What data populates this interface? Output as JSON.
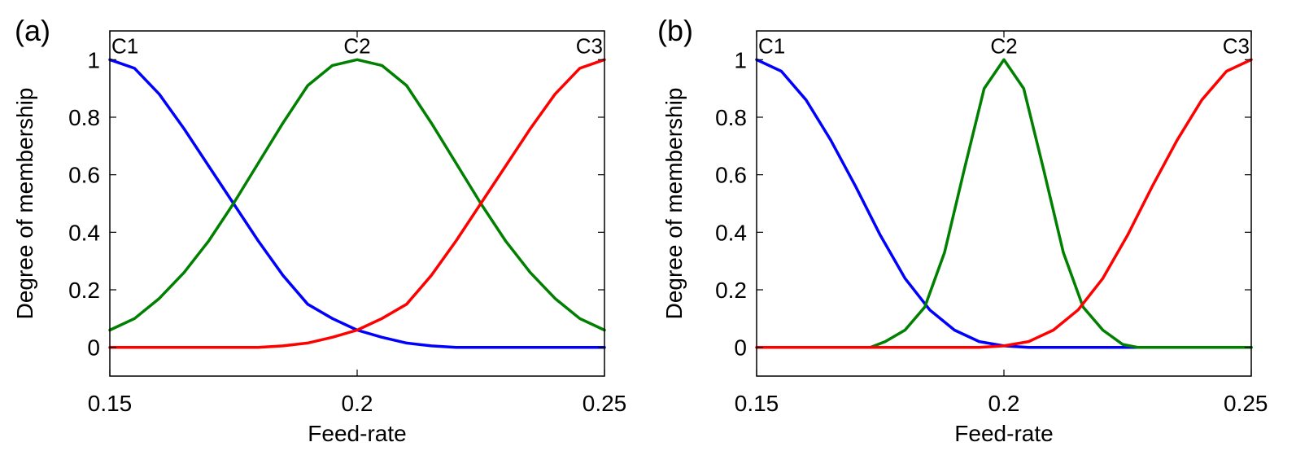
{
  "chart_data": [
    {
      "type": "line",
      "panel_label": "(a)",
      "xlabel": "Feed-rate",
      "ylabel": "Degree of membership",
      "xlim": [
        0.15,
        0.25
      ],
      "ylim": [
        -0.1,
        1.1
      ],
      "xticks": [
        0.15,
        0.2,
        0.25
      ],
      "xtick_labels": [
        "0.15",
        "0.2",
        "0.25"
      ],
      "yticks": [
        0,
        0.2,
        0.4,
        0.6,
        0.8,
        1
      ],
      "ytick_labels": [
        "0",
        "0.2",
        "0.4",
        "0.6",
        "0.8",
        "1"
      ],
      "grid": false,
      "series": [
        {
          "name": "C1",
          "color": "#0000ff",
          "x": [
            0.15,
            0.155,
            0.16,
            0.165,
            0.17,
            0.175,
            0.18,
            0.185,
            0.19,
            0.195,
            0.2,
            0.205,
            0.21,
            0.215,
            0.22,
            0.225,
            0.23,
            0.235,
            0.24,
            0.245,
            0.25
          ],
          "y": [
            1.0,
            0.97,
            0.88,
            0.76,
            0.63,
            0.5,
            0.37,
            0.25,
            0.15,
            0.1,
            0.06,
            0.035,
            0.015,
            0.005,
            0.0,
            0.0,
            0.0,
            0.0,
            0.0,
            0.0,
            0.0
          ]
        },
        {
          "name": "C2",
          "color": "#008000",
          "x": [
            0.15,
            0.155,
            0.16,
            0.165,
            0.17,
            0.175,
            0.18,
            0.185,
            0.19,
            0.195,
            0.2,
            0.205,
            0.21,
            0.215,
            0.22,
            0.225,
            0.23,
            0.235,
            0.24,
            0.245,
            0.25
          ],
          "y": [
            0.06,
            0.1,
            0.17,
            0.26,
            0.37,
            0.5,
            0.64,
            0.78,
            0.91,
            0.98,
            1.0,
            0.98,
            0.91,
            0.78,
            0.64,
            0.5,
            0.37,
            0.26,
            0.17,
            0.1,
            0.06
          ]
        },
        {
          "name": "C3",
          "color": "#ff0000",
          "x": [
            0.15,
            0.155,
            0.16,
            0.165,
            0.17,
            0.175,
            0.18,
            0.185,
            0.19,
            0.195,
            0.2,
            0.205,
            0.21,
            0.215,
            0.22,
            0.225,
            0.23,
            0.235,
            0.24,
            0.245,
            0.25
          ],
          "y": [
            0.0,
            0.0,
            0.0,
            0.0,
            0.0,
            0.0,
            0.0,
            0.005,
            0.015,
            0.035,
            0.06,
            0.1,
            0.15,
            0.25,
            0.37,
            0.5,
            0.63,
            0.76,
            0.88,
            0.97,
            1.0
          ]
        }
      ]
    },
    {
      "type": "line",
      "panel_label": "(b)",
      "xlabel": "Feed-rate",
      "ylabel": "Degree of membership",
      "xlim": [
        0.15,
        0.25
      ],
      "ylim": [
        -0.1,
        1.1
      ],
      "xticks": [
        0.15,
        0.2,
        0.25
      ],
      "xtick_labels": [
        "0.15",
        "0.2",
        "0.25"
      ],
      "yticks": [
        0,
        0.2,
        0.4,
        0.6,
        0.8,
        1
      ],
      "ytick_labels": [
        "0",
        "0.2",
        "0.4",
        "0.6",
        "0.8",
        "1"
      ],
      "grid": false,
      "series": [
        {
          "name": "C1",
          "color": "#0000ff",
          "x": [
            0.15,
            0.155,
            0.16,
            0.165,
            0.17,
            0.175,
            0.18,
            0.185,
            0.19,
            0.195,
            0.2,
            0.205,
            0.21,
            0.215,
            0.22,
            0.225,
            0.23,
            0.235,
            0.24,
            0.245,
            0.25
          ],
          "y": [
            1.0,
            0.96,
            0.86,
            0.72,
            0.56,
            0.39,
            0.24,
            0.13,
            0.06,
            0.02,
            0.005,
            0.0,
            0.0,
            0.0,
            0.0,
            0.0,
            0.0,
            0.0,
            0.0,
            0.0,
            0.0
          ]
        },
        {
          "name": "C2",
          "color": "#008000",
          "x": [
            0.173,
            0.176,
            0.18,
            0.184,
            0.188,
            0.192,
            0.196,
            0.2,
            0.204,
            0.208,
            0.212,
            0.216,
            0.22,
            0.224,
            0.227,
            0.235,
            0.25
          ],
          "y": [
            0.0,
            0.02,
            0.06,
            0.14,
            0.33,
            0.62,
            0.9,
            1.0,
            0.9,
            0.62,
            0.33,
            0.14,
            0.06,
            0.01,
            0.0,
            0.0,
            0.0
          ]
        },
        {
          "name": "C3",
          "color": "#ff0000",
          "x": [
            0.15,
            0.155,
            0.16,
            0.165,
            0.17,
            0.175,
            0.18,
            0.185,
            0.19,
            0.195,
            0.2,
            0.205,
            0.21,
            0.215,
            0.22,
            0.225,
            0.23,
            0.235,
            0.24,
            0.245,
            0.25
          ],
          "y": [
            0.0,
            0.0,
            0.0,
            0.0,
            0.0,
            0.0,
            0.0,
            0.0,
            0.0,
            0.0,
            0.005,
            0.02,
            0.06,
            0.13,
            0.24,
            0.39,
            0.56,
            0.72,
            0.86,
            0.96,
            1.0
          ]
        }
      ]
    }
  ]
}
